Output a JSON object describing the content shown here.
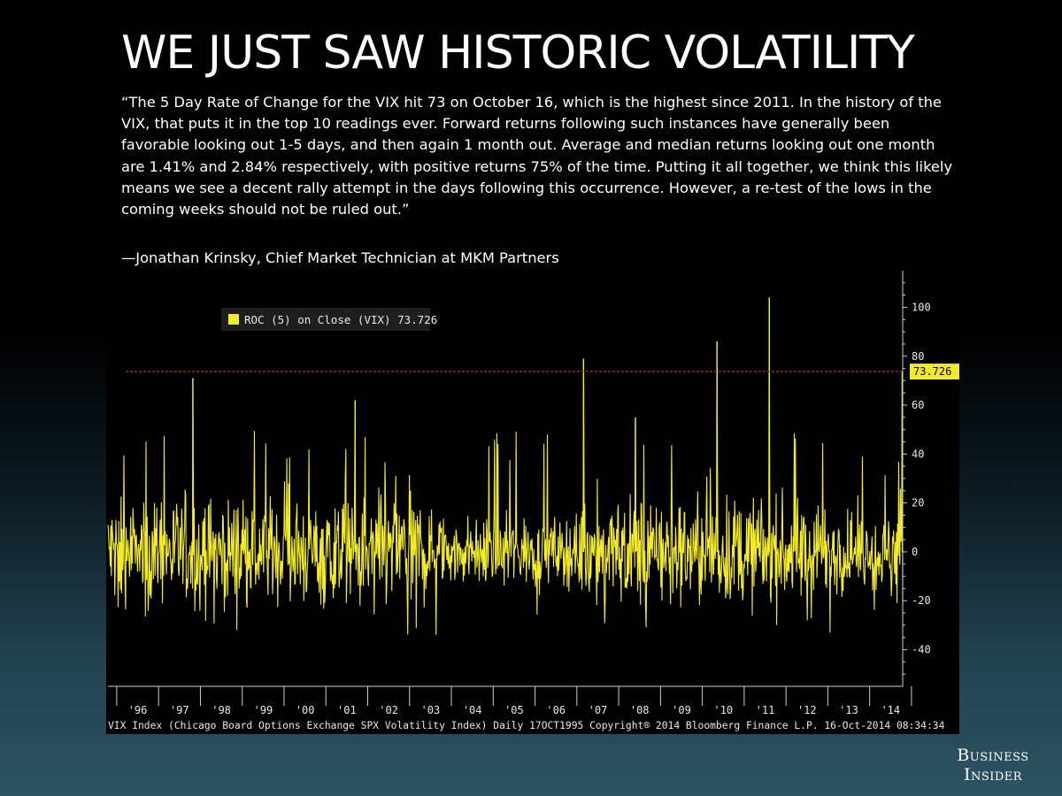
{
  "slide": {
    "title": "WE JUST SAW HISTORIC VOLATILITY",
    "quote": "“The 5 Day Rate of Change for the VIX hit 73 on October 16, which is the highest since 2011. In the history of the VIX, that puts it in the top 10 readings ever. Forward returns following such instances have generally been favorable looking out 1-5 days, and then again 1 month out. Average and median returns looking out one month are 1.41% and 2.84% respectively, with positive returns 75% of the time. Putting it all together, we think this likely means we see a decent rally attempt in the days following this occurrence. However, a re-test of the lows in the coming weeks should not be ruled out.”",
    "attribution": "—Jonathan Krinsky, Chief Market Technician at MKM Partners",
    "logo_text": "Business Insider"
  },
  "chart_data": {
    "type": "line",
    "legend": "ROC (5) on Close (VIX) 73.726",
    "legend_placement": "top-left",
    "current_value": 73.726,
    "current_value_label": "73.726",
    "reference_line": 73.726,
    "y_ticks": [
      100,
      80,
      60,
      40,
      20,
      0,
      -20,
      -40
    ],
    "ylim": [
      -55,
      115
    ],
    "x_ticks": [
      "'96",
      "'97",
      "'98",
      "'99",
      "'00",
      "'01",
      "'02",
      "'03",
      "'04",
      "'05",
      "'06",
      "'07",
      "'08",
      "'09",
      "'10",
      "'11",
      "'12",
      "'13",
      "'14"
    ],
    "xlim": [
      1995.79,
      2014.79
    ],
    "series_color": "#f2ea2a",
    "reference_color": "#c0251f",
    "footer": "VIX Index (Chicago Board Options Exchange SPX Volatility Index)  Daily 17OCT1995  Copyright® 2014 Bloomberg Finance L.P.   16-Oct-2014 08:34:34",
    "notable_peaks": [
      {
        "x": 1997.82,
        "y": 71
      },
      {
        "x": 2001.7,
        "y": 62
      },
      {
        "x": 2007.16,
        "y": 79
      },
      {
        "x": 2008.4,
        "y": 55
      },
      {
        "x": 2010.35,
        "y": 86
      },
      {
        "x": 2011.6,
        "y": 104
      },
      {
        "x": 2014.78,
        "y": 73.726
      }
    ]
  }
}
